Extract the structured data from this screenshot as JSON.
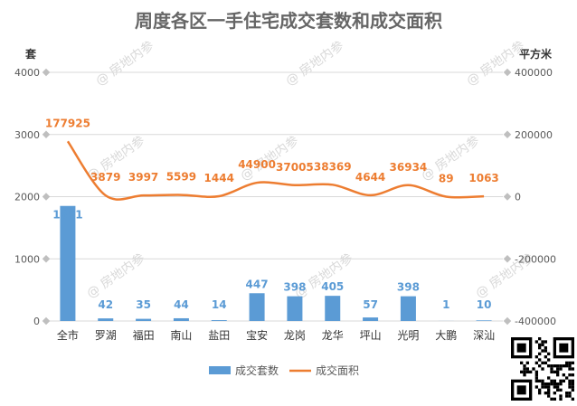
{
  "chart_data": {
    "type": "bar",
    "title": "周度各区一手住宅成交套数和成交面积",
    "y_left_label": "套",
    "y_right_label": "平方米",
    "y_left_ticks": [
      "0",
      "1000",
      "2000",
      "3000",
      "4000"
    ],
    "y_right_ticks": [
      "-400000",
      "-200000",
      "0",
      "200000",
      "400000"
    ],
    "y_left_range": [
      0,
      4000
    ],
    "y_right_range": [
      -400000,
      400000
    ],
    "categories": [
      "全市",
      "罗湖",
      "福田",
      "南山",
      "盐田",
      "宝安",
      "龙岗",
      "龙华",
      "坪山",
      "光明",
      "大鹏",
      "深汕"
    ],
    "series": [
      {
        "name": "成交套数",
        "type": "bar",
        "axis": "left",
        "color": "#5B9BD5",
        "values": [
          1851,
          42,
          35,
          44,
          14,
          447,
          398,
          405,
          57,
          398,
          1,
          10
        ]
      },
      {
        "name": "成交面积",
        "type": "line",
        "axis": "right",
        "color": "#ED7D31",
        "values": [
          177925,
          3879,
          3997,
          5599,
          1444,
          44900,
          37005,
          38369,
          4644,
          36934,
          89,
          1063
        ]
      }
    ],
    "legend_position": "bottom",
    "grid": true
  },
  "watermark": "房地内参"
}
